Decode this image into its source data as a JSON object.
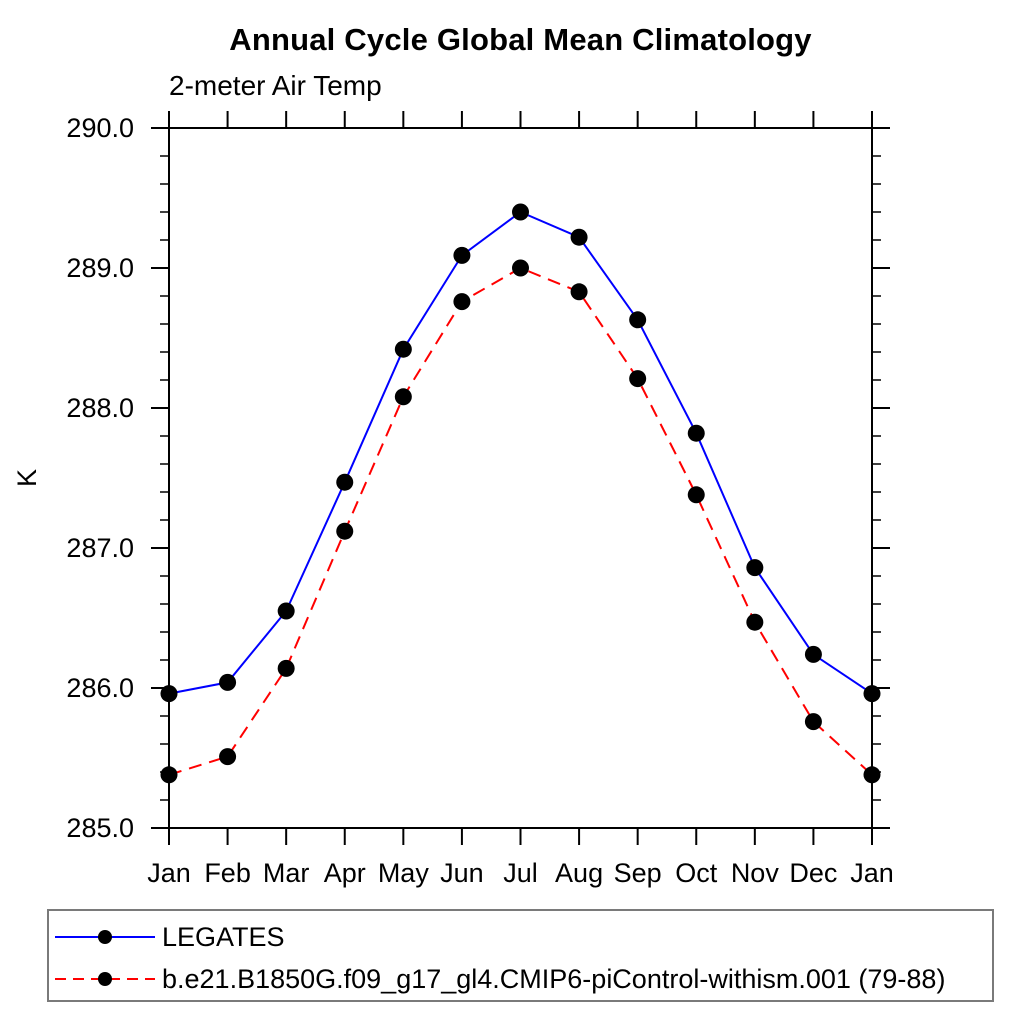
{
  "chart_data": {
    "type": "line",
    "title": "Annual Cycle Global Mean Climatology",
    "subtitle": "2-meter Air Temp",
    "ylabel": "K",
    "xlabel": "",
    "ylim": [
      285.0,
      290.0
    ],
    "ytick_labels": [
      "285.0",
      "286.0",
      "287.0",
      "288.0",
      "289.0",
      "290.0"
    ],
    "ytick_major_step": 1.0,
    "ytick_minor_step": 0.2,
    "grid": false,
    "legend_position": "bottom",
    "categories": [
      "Jan",
      "Feb",
      "Mar",
      "Apr",
      "May",
      "Jun",
      "Jul",
      "Aug",
      "Sep",
      "Oct",
      "Nov",
      "Dec",
      "Jan"
    ],
    "series": [
      {
        "name": "LEGATES",
        "color": "#0000ff",
        "style": "solid",
        "marker": "filled-circle",
        "marker_color": "#000000",
        "values": [
          285.96,
          286.04,
          286.55,
          287.47,
          288.42,
          289.09,
          289.4,
          289.22,
          288.63,
          287.82,
          286.86,
          286.24,
          285.96
        ]
      },
      {
        "name": "b.e21.B1850G.f09_g17_gl4.CMIP6-piControl-withism.001 (79-88)",
        "color": "#ff0000",
        "style": "dashed",
        "marker": "filled-circle",
        "marker_color": "#000000",
        "values": [
          285.38,
          285.51,
          286.14,
          287.12,
          288.08,
          288.76,
          289.0,
          288.83,
          288.21,
          287.38,
          286.47,
          285.76,
          285.38
        ]
      }
    ]
  }
}
